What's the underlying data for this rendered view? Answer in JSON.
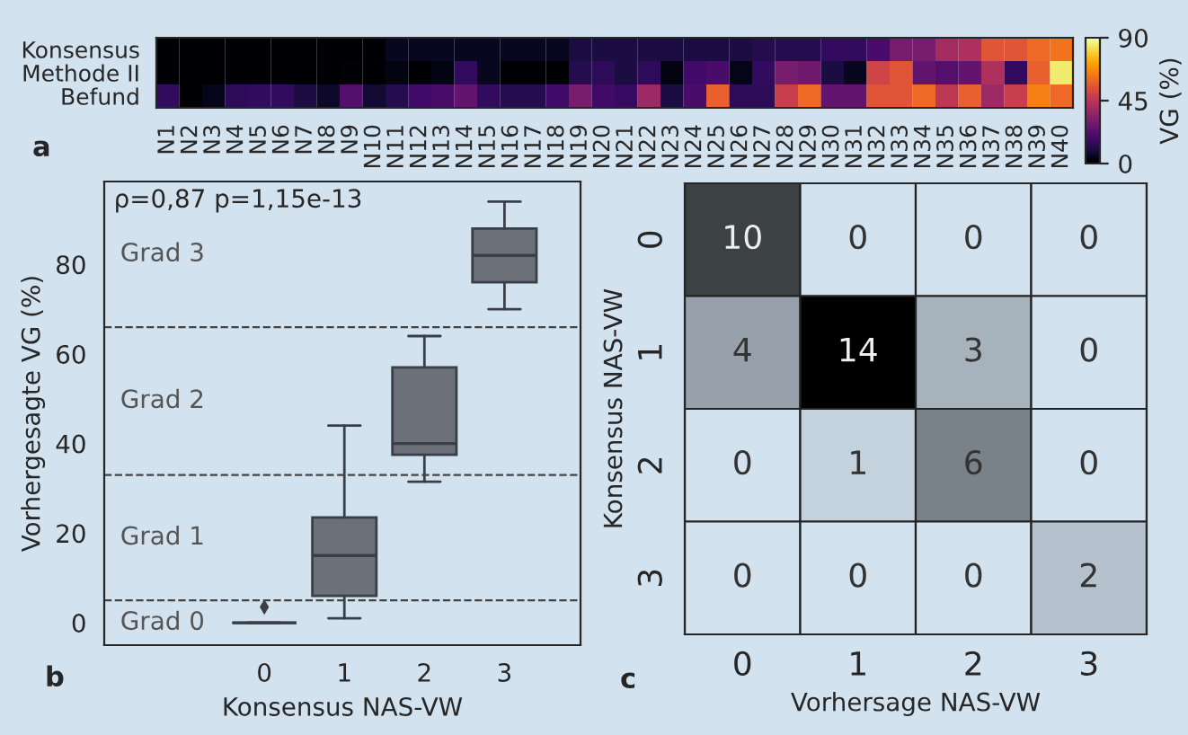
{
  "chart_data": [
    {
      "type": "heatmap",
      "categories": [
        "N1",
        "N2",
        "N3",
        "N4",
        "N5",
        "N6",
        "N7",
        "N8",
        "N9",
        "N10",
        "N11",
        "N12",
        "N13",
        "N14",
        "N15",
        "N16",
        "N17",
        "N18",
        "N19",
        "N20",
        "N21",
        "N22",
        "N23",
        "N24",
        "N25",
        "N26",
        "N27",
        "N28",
        "N29",
        "N30",
        "N31",
        "N32",
        "N33",
        "N34",
        "N35",
        "N36",
        "N37",
        "N38",
        "N39",
        "N40"
      ],
      "y_categories": [
        "Konsensus",
        "Methode II",
        "Befund"
      ],
      "cells": [
        [
          0,
          0,
          0,
          0,
          0,
          0,
          0,
          0,
          0,
          0,
          5,
          5,
          5,
          5,
          5,
          5,
          5,
          5,
          10,
          10,
          10,
          10,
          10,
          10,
          10,
          10,
          12,
          12,
          12,
          15,
          15,
          20,
          30,
          30,
          40,
          42,
          55,
          55,
          60,
          62
        ],
        [
          0,
          0,
          0,
          0,
          0,
          0,
          0,
          0,
          1,
          0,
          3,
          0,
          3,
          15,
          5,
          0,
          0,
          0,
          12,
          14,
          10,
          14,
          3,
          18,
          20,
          4,
          15,
          30,
          28,
          10,
          5,
          50,
          55,
          25,
          22,
          25,
          42,
          15,
          58,
          85
        ],
        [
          15,
          0,
          4,
          14,
          15,
          15,
          10,
          7,
          22,
          8,
          12,
          18,
          20,
          25,
          15,
          12,
          12,
          18,
          30,
          18,
          16,
          38,
          10,
          20,
          58,
          14,
          14,
          48,
          60,
          25,
          25,
          55,
          55,
          60,
          45,
          58,
          38,
          48,
          65,
          60
        ]
      ],
      "clim": [
        0,
        90
      ],
      "cticks": [
        0,
        45,
        90
      ],
      "clabel": "VG (%)",
      "annotations": [
        "a"
      ]
    },
    {
      "type": "box",
      "categories": [
        "0",
        "1",
        "2",
        "3"
      ],
      "boxes": [
        {
          "low": 0,
          "q1": 0,
          "median": 0,
          "q3": 0,
          "high": 0,
          "outliers": [
            3.5
          ]
        },
        {
          "low": 1,
          "q1": 6,
          "median": 15,
          "q3": 23.5,
          "high": 44
        },
        {
          "low": 31.5,
          "q1": 37.5,
          "median": 40,
          "q3": 57,
          "high": 64
        },
        {
          "low": 70,
          "q1": 76,
          "median": 82,
          "q3": 88,
          "high": 94
        }
      ],
      "ylim": [
        -5,
        98.5
      ],
      "yticks": [
        0,
        20,
        40,
        60,
        80
      ],
      "xlabel": "Konsensus NAS-VW",
      "ylabel": "Vorhergesagte VG (%)",
      "ref_lines": [
        {
          "axis": "y",
          "value": 5,
          "line_style": "dashed",
          "color": "#444444"
        },
        {
          "axis": "y",
          "value": 33,
          "line_style": "dashed",
          "color": "#444444"
        },
        {
          "axis": "y",
          "value": 66,
          "line_style": "dashed",
          "color": "#444444"
        }
      ],
      "annotations": [
        "ρ=0,87 p=1,15e-13",
        "Grad 0",
        "Grad 1",
        "Grad 2",
        "Grad 3",
        "b"
      ]
    },
    {
      "type": "heatmap",
      "categories": [
        "0",
        "1",
        "2",
        "3"
      ],
      "y_categories": [
        "0",
        "1",
        "2",
        "3"
      ],
      "cells": [
        [
          10,
          0,
          0,
          0
        ],
        [
          4,
          14,
          3,
          0
        ],
        [
          0,
          1,
          6,
          0
        ],
        [
          0,
          0,
          0,
          2
        ]
      ],
      "data_labels": true,
      "xlabel": "Vorhersage NAS-VW",
      "ylabel": "Konsensus NAS-VW",
      "annotations": [
        "c"
      ]
    }
  ]
}
